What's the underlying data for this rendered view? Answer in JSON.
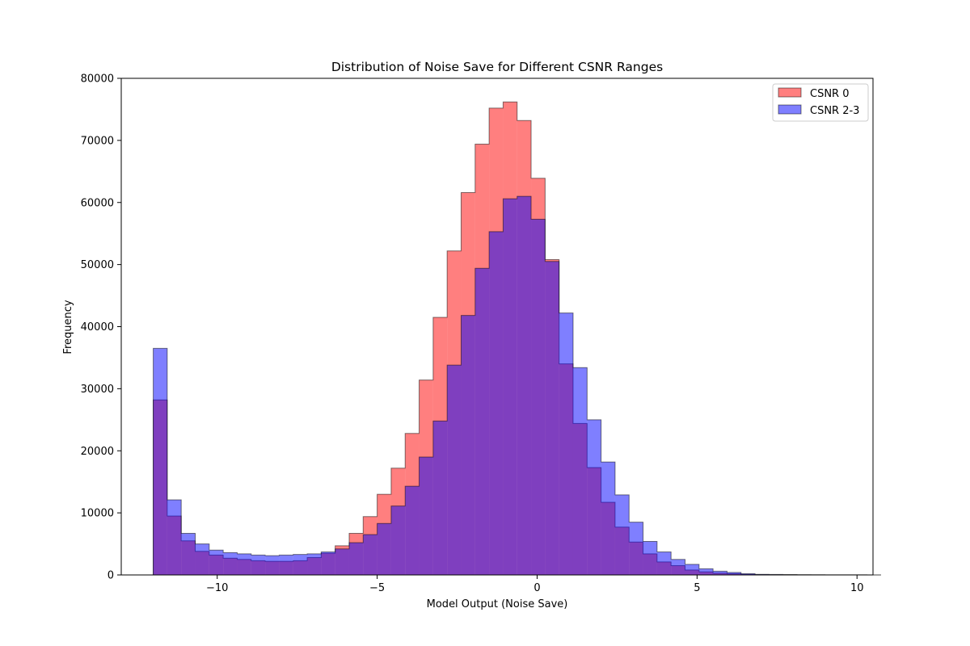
{
  "chart_data": {
    "type": "histogram",
    "title": "Distribution of Noise Save for Different CSNR Ranges",
    "xlabel": "Model Output (Noise Save)",
    "ylabel": "Frequency",
    "xlim": [
      -13.0,
      10.5
    ],
    "ylim": [
      0,
      80000
    ],
    "xticks": [
      -10,
      -5,
      0,
      5,
      10
    ],
    "xtick_labels": [
      "−10",
      "−5",
      "0",
      "5",
      "10"
    ],
    "yticks": [
      0,
      10000,
      20000,
      30000,
      40000,
      50000,
      60000,
      70000,
      80000
    ],
    "ytick_labels": [
      "0",
      "10000",
      "20000",
      "30000",
      "40000",
      "50000",
      "60000",
      "70000",
      "80000"
    ],
    "grid": false,
    "legend_position": "top-right",
    "bin_start": -12.0,
    "bin_width": 0.4375,
    "series": [
      {
        "name": "CSNR 0",
        "color": "#ff0000",
        "alpha": 0.5,
        "values": [
          28200,
          9500,
          5500,
          3800,
          3200,
          2700,
          2500,
          2300,
          2200,
          2200,
          2300,
          2800,
          3500,
          4700,
          6700,
          9400,
          13000,
          17200,
          22800,
          31400,
          41500,
          52200,
          61600,
          69400,
          75200,
          76200,
          73200,
          63900,
          50800,
          34000,
          24400,
          17300,
          11700,
          7700,
          5300,
          3400,
          2100,
          1500,
          800,
          500,
          300,
          200,
          100,
          50,
          30,
          20,
          10,
          0,
          0,
          0,
          0,
          0
        ]
      },
      {
        "name": "CSNR 2-3",
        "color": "#0000ff",
        "alpha": 0.5,
        "values": [
          36500,
          12100,
          6700,
          5000,
          4000,
          3600,
          3400,
          3200,
          3100,
          3200,
          3300,
          3400,
          3700,
          4200,
          5200,
          6500,
          8300,
          11100,
          14300,
          19000,
          24800,
          33800,
          41800,
          49400,
          55300,
          60600,
          61000,
          57300,
          50500,
          42200,
          33400,
          25000,
          18200,
          12900,
          8500,
          5400,
          3700,
          2500,
          1700,
          1000,
          600,
          400,
          200,
          100,
          80,
          60,
          40,
          30,
          20,
          10,
          10,
          0
        ]
      }
    ]
  }
}
